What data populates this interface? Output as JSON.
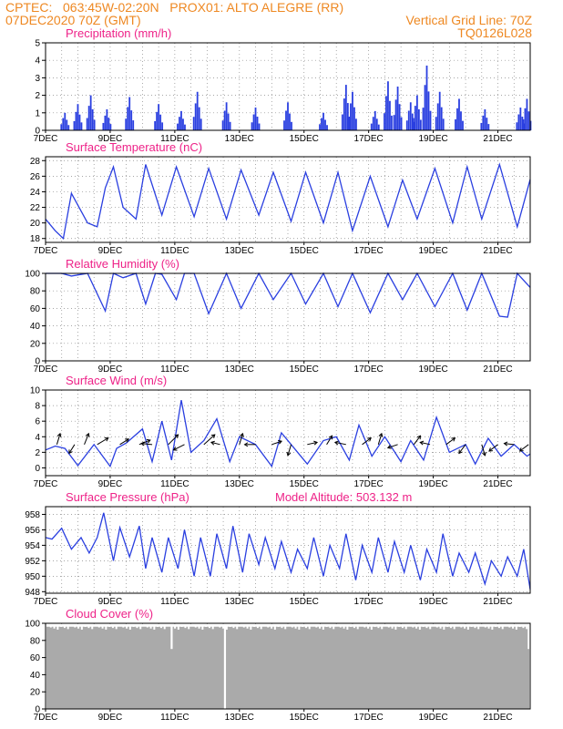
{
  "header": {
    "line1": "CPTEC:   063:45W-02:20N   PROX01: ALTO ALEGRE (RR)",
    "line2": "07DEC2020 70Z (GMT)",
    "vertical_grid": "Vertical Grid Line: 70Z",
    "run_id": "TQ0126L028",
    "color": "#ee8822"
  },
  "colors": {
    "title": "#ee2288",
    "series": "#2a3fe0",
    "cloud": "#aaaaaa",
    "grid": "#888888"
  },
  "chart_data": [
    {
      "type": "bar",
      "title": "Precipitation (mm/h)",
      "ylim": [
        0,
        5
      ],
      "yticks": [
        0,
        1,
        2,
        3,
        4,
        5
      ],
      "grid": true,
      "x_start_day": 7,
      "x_end_day": 22,
      "xtick_labels": [
        "7DEC",
        "9DEC",
        "11DEC",
        "13DEC",
        "15DEC",
        "17DEC",
        "19DEC",
        "21DEC"
      ],
      "clusters": [
        {
          "day": 7.6,
          "peak": 1.0
        },
        {
          "day": 8.0,
          "peak": 1.5
        },
        {
          "day": 8.4,
          "peak": 2.0
        },
        {
          "day": 8.9,
          "peak": 1.2
        },
        {
          "day": 9.6,
          "peak": 1.9
        },
        {
          "day": 10.5,
          "peak": 1.5
        },
        {
          "day": 11.2,
          "peak": 1.1
        },
        {
          "day": 11.7,
          "peak": 2.2
        },
        {
          "day": 12.6,
          "peak": 1.6
        },
        {
          "day": 13.5,
          "peak": 1.3
        },
        {
          "day": 14.5,
          "peak": 1.6
        },
        {
          "day": 15.6,
          "peak": 1.0
        },
        {
          "day": 16.3,
          "peak": 2.6
        },
        {
          "day": 16.5,
          "peak": 2.2
        },
        {
          "day": 17.2,
          "peak": 1.1
        },
        {
          "day": 17.6,
          "peak": 2.8
        },
        {
          "day": 17.9,
          "peak": 2.5
        },
        {
          "day": 18.3,
          "peak": 1.6
        },
        {
          "day": 18.5,
          "peak": 2.0
        },
        {
          "day": 18.8,
          "peak": 3.7
        },
        {
          "day": 19.2,
          "peak": 2.2
        },
        {
          "day": 19.8,
          "peak": 1.8
        },
        {
          "day": 20.6,
          "peak": 1.2
        },
        {
          "day": 21.7,
          "peak": 1.3
        },
        {
          "day": 21.9,
          "peak": 1.8
        }
      ]
    },
    {
      "type": "line",
      "title": "Surface Temperature (nC)",
      "ylim": [
        17.5,
        28.5
      ],
      "yticks": [
        18,
        20,
        22,
        24,
        26,
        28
      ],
      "grid": true,
      "x_start_day": 7,
      "x_end_day": 22,
      "xtick_labels": [
        "7DEC",
        "9DEC",
        "11DEC",
        "13DEC",
        "15DEC",
        "17DEC",
        "19DEC",
        "21DEC"
      ],
      "x": [
        7.0,
        7.3,
        7.55,
        7.8,
        8.3,
        8.6,
        8.85,
        9.1,
        9.4,
        9.8,
        10.1,
        10.6,
        11.05,
        11.6,
        12.05,
        12.6,
        13.05,
        13.6,
        14.05,
        14.6,
        15.05,
        15.6,
        16.05,
        16.5,
        17.05,
        17.6,
        18.05,
        18.5,
        19.05,
        19.6,
        20.05,
        20.5,
        21.05,
        21.6,
        22.0
      ],
      "y": [
        20.5,
        19.0,
        18.0,
        23.8,
        20.0,
        19.5,
        24.5,
        27.2,
        22.0,
        20.5,
        27.5,
        21.0,
        27.2,
        20.8,
        27.0,
        20.5,
        26.8,
        21.0,
        26.5,
        20.2,
        26.5,
        20.0,
        26.5,
        19.0,
        26.0,
        19.5,
        25.5,
        20.5,
        27.0,
        20.0,
        27.2,
        20.5,
        27.5,
        19.5,
        25.6
      ]
    },
    {
      "type": "line",
      "title": "Relative Humidity (%)",
      "ylim": [
        0,
        100
      ],
      "yticks": [
        0,
        20,
        40,
        60,
        80,
        100
      ],
      "grid": true,
      "x_start_day": 7,
      "x_end_day": 22,
      "xtick_labels": [
        "7DEC",
        "9DEC",
        "11DEC",
        "13DEC",
        "15DEC",
        "17DEC",
        "19DEC",
        "21DEC"
      ],
      "x": [
        7.0,
        7.5,
        7.8,
        8.3,
        8.85,
        9.1,
        9.4,
        9.8,
        10.1,
        10.4,
        10.6,
        11.05,
        11.3,
        11.6,
        12.05,
        12.6,
        13.05,
        13.6,
        14.05,
        14.6,
        15.05,
        15.6,
        16.05,
        16.5,
        17.05,
        17.6,
        18.05,
        18.5,
        19.05,
        19.6,
        20.05,
        20.5,
        21.05,
        21.3,
        21.6,
        22.0
      ],
      "y": [
        100,
        100,
        97,
        100,
        57,
        100,
        95,
        100,
        65,
        100,
        99,
        70,
        100,
        100,
        54,
        100,
        60,
        100,
        70,
        100,
        65,
        100,
        62,
        100,
        55,
        100,
        70,
        100,
        62,
        100,
        58,
        100,
        51,
        50,
        100,
        84
      ]
    },
    {
      "type": "line",
      "title": "Surface Wind (m/s)",
      "ylim": [
        -1,
        10
      ],
      "yticks": [
        0,
        2,
        4,
        6,
        8,
        10
      ],
      "grid": true,
      "x_start_day": 7,
      "x_end_day": 22,
      "xtick_labels": [
        "7DEC",
        "9DEC",
        "11DEC",
        "13DEC",
        "15DEC",
        "17DEC",
        "19DEC",
        "21DEC"
      ],
      "x": [
        7.0,
        7.3,
        7.6,
        8.0,
        8.5,
        9.0,
        9.2,
        9.5,
        10.0,
        10.3,
        10.6,
        10.9,
        11.2,
        11.5,
        11.9,
        12.3,
        12.7,
        13.0,
        13.5,
        14.0,
        14.3,
        14.7,
        15.1,
        15.6,
        16.0,
        16.4,
        16.7,
        17.1,
        17.5,
        18.0,
        18.3,
        18.7,
        19.1,
        19.5,
        20.0,
        20.3,
        20.7,
        21.1,
        21.5,
        21.9,
        22.0
      ],
      "y": [
        2.3,
        2.8,
        2.5,
        0.3,
        3.0,
        0.2,
        2.5,
        3.2,
        5.0,
        0.8,
        6.0,
        1.0,
        8.7,
        2.0,
        3.5,
        6.3,
        0.8,
        4.0,
        3.0,
        0.2,
        4.5,
        2.5,
        0.5,
        3.5,
        4.0,
        1.0,
        5.5,
        1.5,
        4.0,
        0.8,
        3.5,
        1.0,
        6.5,
        2.0,
        3.0,
        0.5,
        3.8,
        1.5,
        3.0,
        1.5,
        1.8
      ],
      "vectors": [
        {
          "day": 7.35,
          "u": 0.3,
          "v": 1.0
        },
        {
          "day": 7.9,
          "u": -0.5,
          "v": -0.8
        },
        {
          "day": 8.2,
          "u": 0.4,
          "v": 1.0
        },
        {
          "day": 8.6,
          "u": 1.0,
          "v": 0.6
        },
        {
          "day": 9.3,
          "u": 0.8,
          "v": 0.5
        },
        {
          "day": 9.9,
          "u": 1.0,
          "v": 0.4
        },
        {
          "day": 10.3,
          "u": -1.0,
          "v": 0.1
        },
        {
          "day": 10.8,
          "u": 0.9,
          "v": 0.9
        },
        {
          "day": 11.3,
          "u": -1.0,
          "v": -0.5
        },
        {
          "day": 11.9,
          "u": 1.0,
          "v": 0.9
        },
        {
          "day": 12.4,
          "u": -0.8,
          "v": 0.2
        },
        {
          "day": 13.0,
          "u": 0.3,
          "v": 1.0
        },
        {
          "day": 13.5,
          "u": -1.0,
          "v": 0.0
        },
        {
          "day": 14.0,
          "u": 0.9,
          "v": 0.3
        },
        {
          "day": 14.6,
          "u": -0.3,
          "v": -1.0
        },
        {
          "day": 15.1,
          "u": 0.9,
          "v": 0.2
        },
        {
          "day": 15.7,
          "u": 0.5,
          "v": 0.8
        },
        {
          "day": 16.3,
          "u": -1.0,
          "v": 0.2
        },
        {
          "day": 16.8,
          "u": 0.8,
          "v": 0.6
        },
        {
          "day": 17.3,
          "u": 0.3,
          "v": 1.0
        },
        {
          "day": 17.9,
          "u": -0.9,
          "v": -0.3
        },
        {
          "day": 18.4,
          "u": 0.6,
          "v": 0.8
        },
        {
          "day": 18.9,
          "u": -0.9,
          "v": 0.2
        },
        {
          "day": 19.4,
          "u": 0.8,
          "v": 0.6
        },
        {
          "day": 20.0,
          "u": -0.6,
          "v": -0.8
        },
        {
          "day": 20.5,
          "u": 0.3,
          "v": -1.0
        },
        {
          "day": 21.0,
          "u": -0.8,
          "v": -0.6
        },
        {
          "day": 21.5,
          "u": -0.9,
          "v": 0.1
        },
        {
          "day": 21.95,
          "u": -0.8,
          "v": -0.6
        }
      ]
    },
    {
      "type": "line",
      "title": "Surface Pressure (hPa)",
      "subtitle": "Model Altitude: 503.132 m",
      "ylim": [
        947.8,
        959.0
      ],
      "yticks": [
        948,
        950,
        952,
        954,
        956,
        958
      ],
      "grid": true,
      "x_start_day": 7,
      "x_end_day": 22,
      "xtick_labels": [
        "7DEC",
        "9DEC",
        "11DEC",
        "13DEC",
        "15DEC",
        "17DEC",
        "19DEC",
        "21DEC"
      ],
      "x": [
        7.0,
        7.2,
        7.5,
        7.8,
        8.1,
        8.35,
        8.6,
        8.8,
        9.1,
        9.3,
        9.6,
        9.9,
        10.1,
        10.3,
        10.6,
        10.8,
        11.1,
        11.3,
        11.6,
        11.8,
        12.1,
        12.3,
        12.6,
        12.8,
        13.1,
        13.3,
        13.6,
        13.8,
        14.1,
        14.3,
        14.6,
        14.8,
        15.1,
        15.3,
        15.6,
        15.8,
        16.1,
        16.3,
        16.6,
        16.8,
        17.1,
        17.3,
        17.6,
        17.8,
        18.1,
        18.3,
        18.6,
        18.8,
        19.1,
        19.3,
        19.6,
        19.8,
        20.1,
        20.3,
        20.6,
        20.8,
        21.1,
        21.3,
        21.6,
        21.8,
        22.0
      ],
      "y": [
        955.0,
        954.8,
        956.2,
        953.5,
        955.0,
        953.0,
        955.0,
        958.2,
        952.0,
        956.3,
        952.5,
        956.5,
        951.0,
        955.0,
        950.5,
        955.0,
        951.0,
        956.0,
        950.0,
        955.0,
        950.0,
        955.5,
        951.0,
        956.5,
        950.5,
        955.5,
        951.5,
        955.0,
        951.0,
        954.5,
        950.5,
        953.5,
        951.0,
        955.0,
        950.0,
        954.0,
        951.0,
        955.5,
        949.5,
        954.0,
        950.5,
        955.0,
        950.5,
        954.5,
        950.5,
        954.0,
        949.5,
        953.5,
        950.5,
        955.5,
        950.0,
        953.0,
        950.5,
        953.0,
        949.0,
        952.0,
        950.0,
        952.5,
        950.0,
        953.5,
        948.3
      ]
    },
    {
      "type": "area",
      "title": "Cloud Cover (%)",
      "ylim": [
        0,
        100
      ],
      "yticks": [
        0,
        20,
        40,
        60,
        80,
        100
      ],
      "grid": true,
      "x_start_day": 7,
      "x_end_day": 22,
      "xtick_labels": [
        "7DEC",
        "9DEC",
        "11DEC",
        "13DEC",
        "15DEC",
        "17DEC",
        "19DEC",
        "21DEC"
      ],
      "value": 96,
      "dips": [
        {
          "day": 10.9,
          "value": 70
        },
        {
          "day": 12.55,
          "value": 0
        },
        {
          "day": 21.95,
          "value": 70
        }
      ]
    }
  ]
}
